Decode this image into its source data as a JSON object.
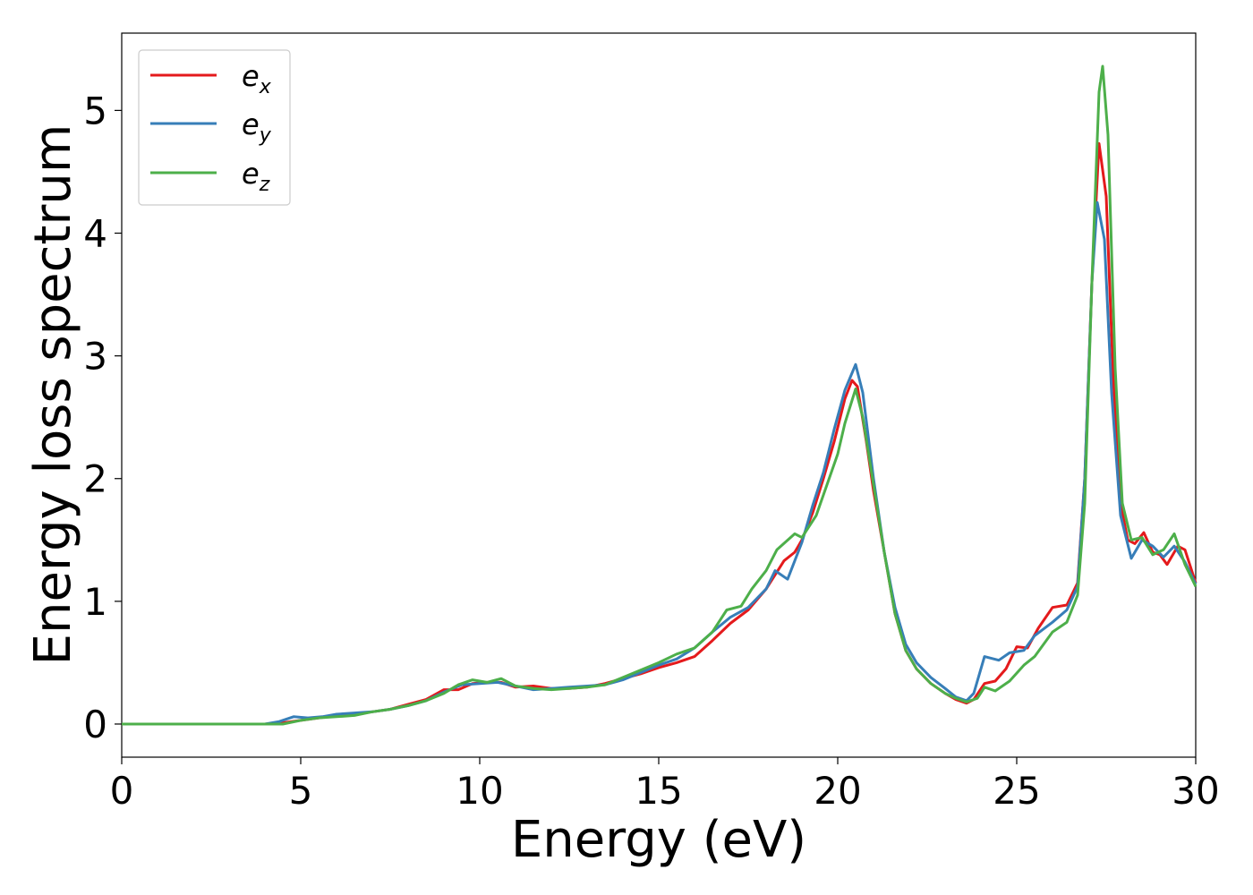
{
  "chart_data": {
    "type": "line",
    "title": "",
    "xlabel": "Energy (eV)",
    "ylabel": "Energy loss spectrum",
    "xlim": [
      0,
      30
    ],
    "ylim": [
      -0.27,
      5.63
    ],
    "xticks": [
      0,
      5,
      10,
      15,
      20,
      25,
      30
    ],
    "xtick_labels": [
      "0",
      "5",
      "10",
      "15",
      "20",
      "25",
      "30"
    ],
    "yticks": [
      0,
      1,
      2,
      3,
      4,
      5
    ],
    "ytick_labels": [
      "0",
      "1",
      "2",
      "3",
      "4",
      "5"
    ],
    "grid": false,
    "legend_position": "top-left",
    "series": [
      {
        "name": "e_x",
        "label_base": "e",
        "label_sub": "x",
        "color": "#e41a1c",
        "points": [
          [
            0,
            0
          ],
          [
            4,
            0
          ],
          [
            4.5,
            0.01
          ],
          [
            5,
            0.03
          ],
          [
            5.5,
            0.05
          ],
          [
            6,
            0.07
          ],
          [
            6.5,
            0.08
          ],
          [
            7,
            0.1
          ],
          [
            7.5,
            0.12
          ],
          [
            8,
            0.16
          ],
          [
            8.5,
            0.2
          ],
          [
            9,
            0.28
          ],
          [
            9.4,
            0.28
          ],
          [
            9.8,
            0.33
          ],
          [
            10.2,
            0.34
          ],
          [
            10.6,
            0.34
          ],
          [
            11,
            0.3
          ],
          [
            11.5,
            0.31
          ],
          [
            12,
            0.29
          ],
          [
            12.5,
            0.29
          ],
          [
            13,
            0.3
          ],
          [
            13.5,
            0.33
          ],
          [
            14,
            0.37
          ],
          [
            14.5,
            0.41
          ],
          [
            15,
            0.46
          ],
          [
            15.5,
            0.5
          ],
          [
            16,
            0.55
          ],
          [
            16.5,
            0.68
          ],
          [
            17,
            0.82
          ],
          [
            17.5,
            0.93
          ],
          [
            18,
            1.1
          ],
          [
            18.5,
            1.33
          ],
          [
            18.8,
            1.4
          ],
          [
            19,
            1.5
          ],
          [
            19.3,
            1.72
          ],
          [
            19.6,
            2.0
          ],
          [
            19.9,
            2.3
          ],
          [
            20.2,
            2.65
          ],
          [
            20.4,
            2.8
          ],
          [
            20.55,
            2.75
          ],
          [
            20.8,
            2.3
          ],
          [
            21,
            1.9
          ],
          [
            21.3,
            1.4
          ],
          [
            21.6,
            0.9
          ],
          [
            21.9,
            0.6
          ],
          [
            22.2,
            0.45
          ],
          [
            22.6,
            0.33
          ],
          [
            23,
            0.25
          ],
          [
            23.3,
            0.2
          ],
          [
            23.6,
            0.17
          ],
          [
            23.8,
            0.2
          ],
          [
            24.1,
            0.33
          ],
          [
            24.4,
            0.35
          ],
          [
            24.7,
            0.45
          ],
          [
            25,
            0.63
          ],
          [
            25.3,
            0.62
          ],
          [
            25.6,
            0.78
          ],
          [
            26,
            0.95
          ],
          [
            26.4,
            0.97
          ],
          [
            26.7,
            1.15
          ],
          [
            26.9,
            2.0
          ],
          [
            27.1,
            3.6
          ],
          [
            27.3,
            4.73
          ],
          [
            27.5,
            4.3
          ],
          [
            27.7,
            2.8
          ],
          [
            27.9,
            1.8
          ],
          [
            28.1,
            1.5
          ],
          [
            28.3,
            1.47
          ],
          [
            28.55,
            1.56
          ],
          [
            28.8,
            1.4
          ],
          [
            29,
            1.38
          ],
          [
            29.2,
            1.3
          ],
          [
            29.5,
            1.45
          ],
          [
            29.7,
            1.42
          ],
          [
            30,
            1.15
          ]
        ]
      },
      {
        "name": "e_y",
        "label_base": "e",
        "label_sub": "y",
        "color": "#377eb8",
        "points": [
          [
            0,
            0
          ],
          [
            4,
            0
          ],
          [
            4.4,
            0.02
          ],
          [
            4.8,
            0.06
          ],
          [
            5.2,
            0.05
          ],
          [
            5.6,
            0.06
          ],
          [
            6,
            0.08
          ],
          [
            6.5,
            0.09
          ],
          [
            7,
            0.1
          ],
          [
            7.5,
            0.12
          ],
          [
            8,
            0.15
          ],
          [
            8.5,
            0.19
          ],
          [
            9,
            0.26
          ],
          [
            9.5,
            0.32
          ],
          [
            10,
            0.33
          ],
          [
            10.5,
            0.34
          ],
          [
            11,
            0.31
          ],
          [
            11.5,
            0.28
          ],
          [
            12,
            0.29
          ],
          [
            12.5,
            0.3
          ],
          [
            13,
            0.31
          ],
          [
            13.5,
            0.32
          ],
          [
            14,
            0.36
          ],
          [
            14.5,
            0.42
          ],
          [
            15,
            0.48
          ],
          [
            15.5,
            0.53
          ],
          [
            16,
            0.62
          ],
          [
            16.5,
            0.75
          ],
          [
            17,
            0.87
          ],
          [
            17.5,
            0.95
          ],
          [
            18,
            1.1
          ],
          [
            18.25,
            1.25
          ],
          [
            18.6,
            1.18
          ],
          [
            19,
            1.48
          ],
          [
            19.3,
            1.78
          ],
          [
            19.6,
            2.05
          ],
          [
            19.9,
            2.4
          ],
          [
            20.2,
            2.72
          ],
          [
            20.5,
            2.93
          ],
          [
            20.7,
            2.7
          ],
          [
            21,
            2.0
          ],
          [
            21.3,
            1.4
          ],
          [
            21.6,
            0.95
          ],
          [
            21.9,
            0.65
          ],
          [
            22.2,
            0.5
          ],
          [
            22.6,
            0.38
          ],
          [
            23,
            0.29
          ],
          [
            23.3,
            0.22
          ],
          [
            23.6,
            0.19
          ],
          [
            23.8,
            0.25
          ],
          [
            24.1,
            0.55
          ],
          [
            24.5,
            0.52
          ],
          [
            24.8,
            0.58
          ],
          [
            25.2,
            0.6
          ],
          [
            25.5,
            0.72
          ],
          [
            26,
            0.83
          ],
          [
            26.4,
            0.93
          ],
          [
            26.7,
            1.12
          ],
          [
            26.9,
            2.0
          ],
          [
            27.1,
            3.6
          ],
          [
            27.25,
            4.25
          ],
          [
            27.45,
            3.95
          ],
          [
            27.65,
            2.7
          ],
          [
            27.9,
            1.7
          ],
          [
            28.2,
            1.35
          ],
          [
            28.5,
            1.5
          ],
          [
            28.8,
            1.45
          ],
          [
            29.1,
            1.36
          ],
          [
            29.4,
            1.45
          ],
          [
            29.7,
            1.32
          ],
          [
            30,
            1.14
          ]
        ]
      },
      {
        "name": "e_z",
        "label_base": "e",
        "label_sub": "z",
        "color": "#4daf4a",
        "points": [
          [
            0,
            0
          ],
          [
            4,
            0
          ],
          [
            4.5,
            0.0
          ],
          [
            5,
            0.03
          ],
          [
            5.5,
            0.05
          ],
          [
            6,
            0.06
          ],
          [
            6.5,
            0.07
          ],
          [
            7,
            0.1
          ],
          [
            7.5,
            0.12
          ],
          [
            8,
            0.15
          ],
          [
            8.5,
            0.19
          ],
          [
            9,
            0.25
          ],
          [
            9.4,
            0.32
          ],
          [
            9.8,
            0.36
          ],
          [
            10.2,
            0.34
          ],
          [
            10.6,
            0.37
          ],
          [
            11,
            0.31
          ],
          [
            11.5,
            0.29
          ],
          [
            12,
            0.28
          ],
          [
            12.5,
            0.29
          ],
          [
            13,
            0.3
          ],
          [
            13.5,
            0.32
          ],
          [
            14,
            0.38
          ],
          [
            14.5,
            0.44
          ],
          [
            15,
            0.5
          ],
          [
            15.5,
            0.57
          ],
          [
            16,
            0.62
          ],
          [
            16.5,
            0.75
          ],
          [
            16.9,
            0.93
          ],
          [
            17.3,
            0.96
          ],
          [
            17.6,
            1.1
          ],
          [
            18,
            1.25
          ],
          [
            18.3,
            1.42
          ],
          [
            18.8,
            1.55
          ],
          [
            19,
            1.52
          ],
          [
            19.4,
            1.7
          ],
          [
            19.7,
            1.95
          ],
          [
            20,
            2.2
          ],
          [
            20.2,
            2.45
          ],
          [
            20.5,
            2.73
          ],
          [
            20.7,
            2.5
          ],
          [
            21,
            1.95
          ],
          [
            21.3,
            1.4
          ],
          [
            21.6,
            0.9
          ],
          [
            21.9,
            0.6
          ],
          [
            22.2,
            0.45
          ],
          [
            22.6,
            0.33
          ],
          [
            23,
            0.25
          ],
          [
            23.3,
            0.21
          ],
          [
            23.6,
            0.18
          ],
          [
            23.9,
            0.21
          ],
          [
            24.1,
            0.3
          ],
          [
            24.4,
            0.27
          ],
          [
            24.8,
            0.35
          ],
          [
            25.2,
            0.48
          ],
          [
            25.5,
            0.55
          ],
          [
            26,
            0.75
          ],
          [
            26.4,
            0.83
          ],
          [
            26.7,
            1.05
          ],
          [
            26.9,
            1.8
          ],
          [
            27.1,
            3.6
          ],
          [
            27.3,
            5.15
          ],
          [
            27.4,
            5.36
          ],
          [
            27.55,
            4.8
          ],
          [
            27.75,
            2.9
          ],
          [
            27.95,
            1.8
          ],
          [
            28.2,
            1.5
          ],
          [
            28.5,
            1.52
          ],
          [
            28.8,
            1.38
          ],
          [
            29.1,
            1.42
          ],
          [
            29.4,
            1.55
          ],
          [
            29.7,
            1.3
          ],
          [
            30,
            1.12
          ]
        ]
      }
    ]
  }
}
